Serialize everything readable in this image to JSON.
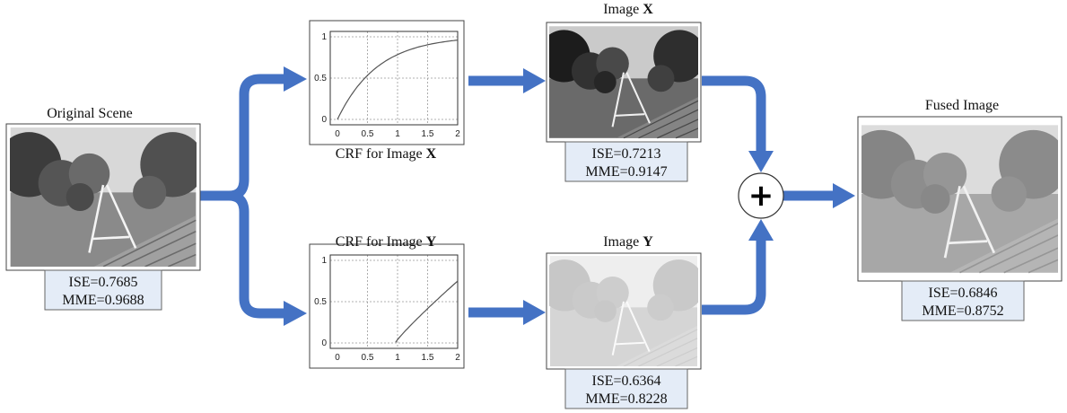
{
  "original": {
    "title": "Original Scene",
    "metrics": [
      "ISE=0.7685",
      "MME=0.9688"
    ]
  },
  "crf_x": {
    "title": "CRF for Image",
    "title_bold": "X",
    "xticks": [
      "0",
      "0.5",
      "1",
      "1.5",
      "2"
    ],
    "yticks": [
      "0",
      "0.5",
      "1"
    ]
  },
  "crf_y": {
    "title": "CRF for Image",
    "title_bold": "Y",
    "xticks": [
      "0",
      "0.5",
      "1",
      "1.5",
      "2"
    ],
    "yticks": [
      "0",
      "0.5",
      "1"
    ]
  },
  "image_x": {
    "title": "Image",
    "title_bold": "X",
    "metrics": [
      "ISE=0.7213",
      "MME=0.9147"
    ]
  },
  "image_y": {
    "title": "Image",
    "title_bold": "Y",
    "metrics": [
      "ISE=0.6364",
      "MME=0.8228"
    ]
  },
  "fused": {
    "title": "Fused Image",
    "metrics": [
      "ISE=0.6846",
      "MME=0.8752"
    ]
  },
  "operator": "+"
}
